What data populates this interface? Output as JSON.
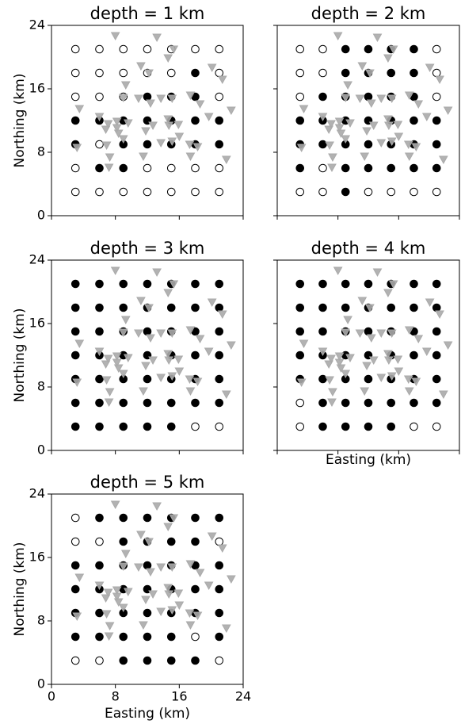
{
  "chart_data": [
    {
      "type": "scatter",
      "title": "depth = 1 km",
      "ylabel": "Northing (km)",
      "xlim": [
        0,
        24
      ],
      "ylim": [
        0,
        24
      ],
      "xticks": [
        0,
        8,
        16,
        24
      ],
      "yticks": [
        0,
        8,
        16,
        24
      ],
      "xticklabels": false,
      "yticklabels": true,
      "grid_x": [
        3,
        6,
        9,
        12,
        15,
        18,
        21
      ],
      "grid_y": [
        21,
        18,
        15,
        12,
        9,
        6,
        3
      ],
      "filled": [
        [
          0,
          0,
          0,
          0,
          0,
          0,
          0
        ],
        [
          0,
          0,
          0,
          0,
          0,
          1,
          0
        ],
        [
          0,
          0,
          0,
          1,
          1,
          1,
          0
        ],
        [
          1,
          1,
          1,
          1,
          1,
          1,
          1
        ],
        [
          1,
          0,
          1,
          1,
          1,
          1,
          1
        ],
        [
          0,
          1,
          1,
          0,
          0,
          0,
          0
        ],
        [
          0,
          0,
          0,
          0,
          0,
          0,
          0
        ]
      ]
    },
    {
      "type": "scatter",
      "title": "depth = 2 km",
      "xlim": [
        0,
        24
      ],
      "ylim": [
        0,
        24
      ],
      "xticks": [
        0,
        8,
        16,
        24
      ],
      "yticks": [
        0,
        8,
        16,
        24
      ],
      "xticklabels": false,
      "yticklabels": false,
      "grid_x": [
        3,
        6,
        9,
        12,
        15,
        18,
        21
      ],
      "grid_y": [
        21,
        18,
        15,
        12,
        9,
        6,
        3
      ],
      "filled": [
        [
          0,
          0,
          1,
          1,
          1,
          1,
          0
        ],
        [
          0,
          0,
          1,
          1,
          1,
          1,
          0
        ],
        [
          0,
          1,
          1,
          1,
          1,
          1,
          0
        ],
        [
          1,
          1,
          1,
          1,
          1,
          1,
          1
        ],
        [
          1,
          1,
          1,
          1,
          1,
          1,
          1
        ],
        [
          1,
          0,
          1,
          1,
          1,
          1,
          1
        ],
        [
          0,
          0,
          1,
          0,
          0,
          0,
          0
        ]
      ]
    },
    {
      "type": "scatter",
      "title": "depth = 3 km",
      "ylabel": "Northing (km)",
      "xlim": [
        0,
        24
      ],
      "ylim": [
        0,
        24
      ],
      "xticks": [
        0,
        8,
        16,
        24
      ],
      "yticks": [
        0,
        8,
        16,
        24
      ],
      "xticklabels": false,
      "yticklabels": true,
      "grid_x": [
        3,
        6,
        9,
        12,
        15,
        18,
        21
      ],
      "grid_y": [
        21,
        18,
        15,
        12,
        9,
        6,
        3
      ],
      "filled": [
        [
          1,
          1,
          1,
          1,
          1,
          1,
          1
        ],
        [
          1,
          1,
          1,
          1,
          1,
          1,
          1
        ],
        [
          1,
          1,
          1,
          1,
          1,
          1,
          1
        ],
        [
          1,
          1,
          1,
          1,
          1,
          1,
          1
        ],
        [
          1,
          1,
          1,
          1,
          1,
          1,
          1
        ],
        [
          1,
          1,
          1,
          1,
          1,
          1,
          1
        ],
        [
          1,
          1,
          1,
          1,
          1,
          0,
          0
        ]
      ]
    },
    {
      "type": "scatter",
      "title": "depth = 4 km",
      "xlabel": "Easting (km)",
      "xlim": [
        0,
        24
      ],
      "ylim": [
        0,
        24
      ],
      "xticks": [
        0,
        8,
        16,
        24
      ],
      "yticks": [
        0,
        8,
        16,
        24
      ],
      "xticklabels": false,
      "yticklabels": false,
      "grid_x": [
        3,
        6,
        9,
        12,
        15,
        18,
        21
      ],
      "grid_y": [
        21,
        18,
        15,
        12,
        9,
        6,
        3
      ],
      "filled": [
        [
          1,
          1,
          1,
          1,
          1,
          1,
          1
        ],
        [
          1,
          1,
          1,
          1,
          1,
          1,
          1
        ],
        [
          1,
          1,
          1,
          1,
          1,
          1,
          1
        ],
        [
          1,
          1,
          1,
          1,
          1,
          1,
          1
        ],
        [
          1,
          1,
          1,
          1,
          1,
          1,
          1
        ],
        [
          0,
          1,
          1,
          1,
          1,
          1,
          1
        ],
        [
          0,
          1,
          1,
          1,
          1,
          0,
          0
        ]
      ]
    },
    {
      "type": "scatter",
      "title": "depth = 5 km",
      "xlabel": "Easting (km)",
      "ylabel": "Northing (km)",
      "xlim": [
        0,
        24
      ],
      "ylim": [
        0,
        24
      ],
      "xticks": [
        0,
        8,
        16,
        24
      ],
      "yticks": [
        0,
        8,
        16,
        24
      ],
      "xticklabels": true,
      "yticklabels": true,
      "grid_x": [
        3,
        6,
        9,
        12,
        15,
        18,
        21
      ],
      "grid_y": [
        21,
        18,
        15,
        12,
        9,
        6,
        3
      ],
      "filled": [
        [
          0,
          1,
          1,
          1,
          1,
          1,
          1
        ],
        [
          0,
          0,
          1,
          1,
          1,
          1,
          0
        ],
        [
          1,
          1,
          1,
          1,
          1,
          1,
          1
        ],
        [
          1,
          1,
          1,
          1,
          1,
          1,
          1
        ],
        [
          1,
          1,
          1,
          1,
          1,
          1,
          1
        ],
        [
          1,
          1,
          1,
          1,
          1,
          0,
          1
        ],
        [
          0,
          0,
          1,
          1,
          1,
          1,
          0
        ]
      ]
    }
  ],
  "stations": {
    "color": "#aaaaaa",
    "x": [
      8.0,
      13.2,
      15.3,
      14.6,
      11.2,
      12.2,
      20.1,
      21.4,
      9.3,
      9.0,
      10.9,
      12.4,
      13.7,
      15.1,
      17.4,
      18.6,
      19.7,
      22.5,
      3.5,
      6.0,
      8.2,
      7.1,
      6.8,
      8.2,
      8.4,
      9.0,
      9.6,
      12.7,
      14.6,
      14.7,
      15.9,
      11.8,
      13.7,
      15.1,
      16.0,
      6.9,
      7.3,
      7.2,
      3.2,
      11.5,
      17.3,
      17.4,
      18.3,
      21.9
    ],
    "y": [
      22.7,
      22.5,
      21.0,
      19.9,
      18.9,
      18.0,
      18.7,
      17.2,
      16.5,
      14.9,
      14.8,
      14.2,
      14.8,
      14.8,
      15.2,
      14.1,
      12.5,
      13.3,
      13.5,
      12.5,
      11.9,
      11.6,
      10.9,
      11.1,
      10.4,
      9.7,
      11.7,
      11.4,
      12.2,
      11.4,
      11.5,
      10.7,
      9.2,
      9.4,
      10.0,
      8.9,
      7.4,
      6.1,
      8.6,
      7.5,
      9.0,
      7.5,
      8.7,
      7.1
    ]
  }
}
